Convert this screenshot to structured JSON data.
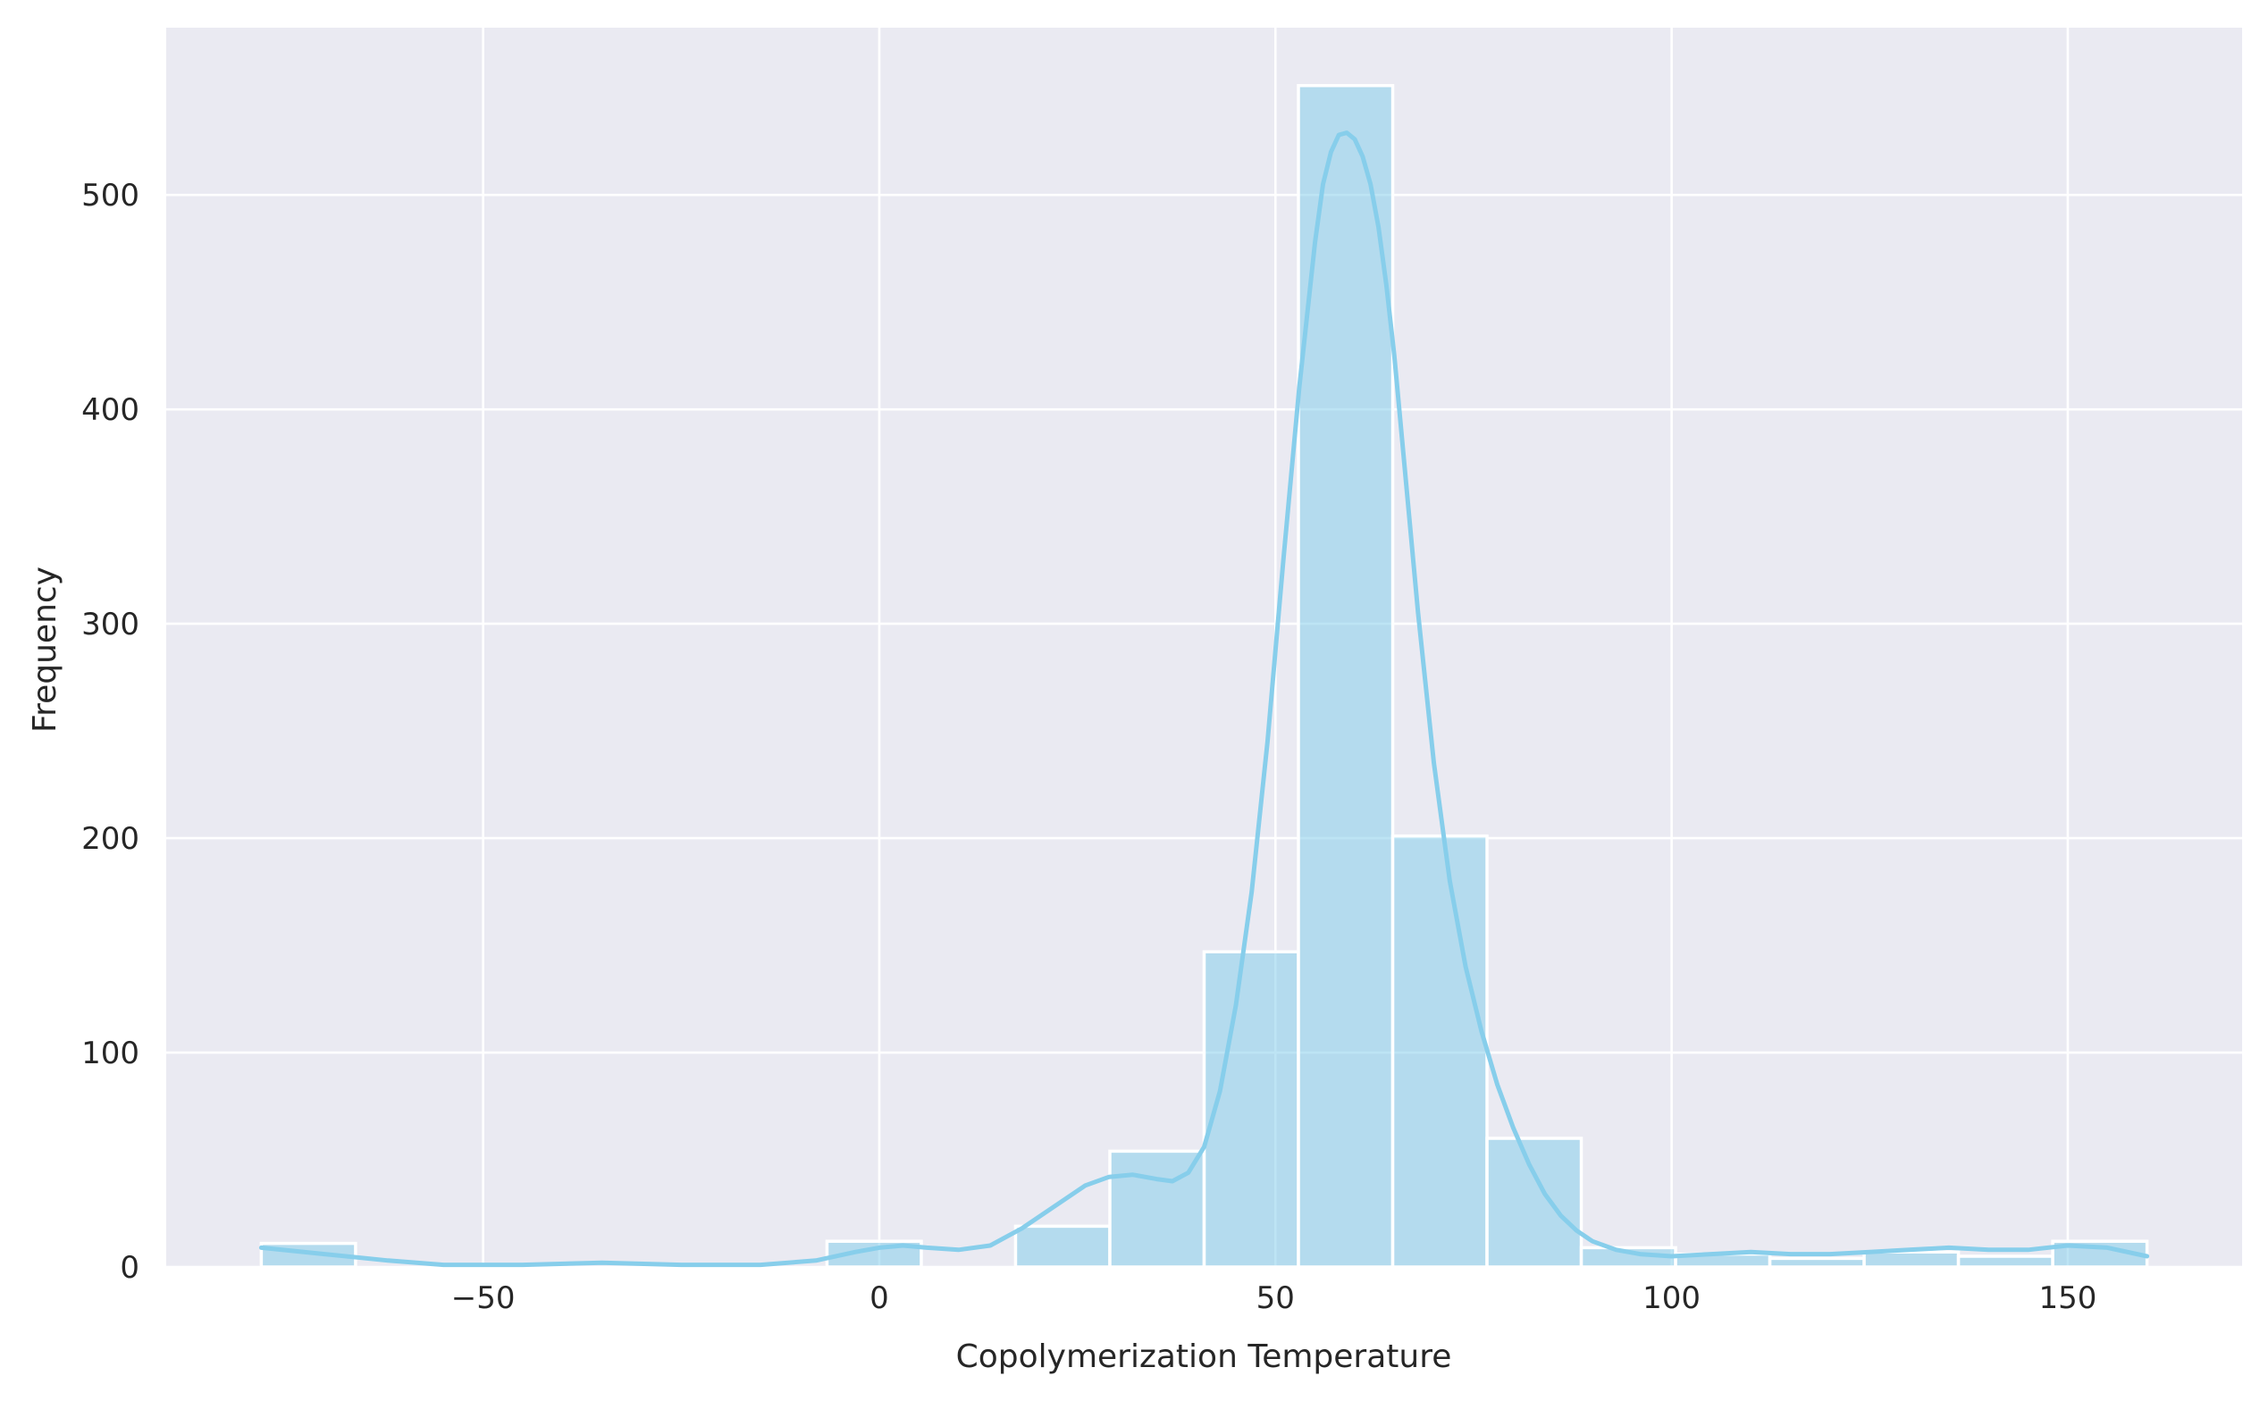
{
  "chart_data": {
    "type": "histogram",
    "xlabel": "Copolymerization Temperature",
    "ylabel": "Frequency",
    "xlim": [
      -90,
      172
    ],
    "ylim": [
      0,
      578
    ],
    "x_ticks": [
      -50,
      0,
      50,
      100,
      150
    ],
    "x_tick_labels": [
      "−50",
      "0",
      "50",
      "100",
      "150"
    ],
    "y_ticks": [
      0,
      100,
      200,
      300,
      400,
      500
    ],
    "y_tick_labels": [
      "0",
      "100",
      "200",
      "300",
      "400",
      "500"
    ],
    "grid": true,
    "bar_color": "#87ceeb",
    "line_color": "#87ceeb",
    "background_color": "#eaeaf2",
    "bins": [
      {
        "x0": -78.0,
        "x1": -66.1,
        "count": 11
      },
      {
        "x0": -66.1,
        "x1": -54.2,
        "count": 0
      },
      {
        "x0": -54.2,
        "x1": -42.3,
        "count": 0
      },
      {
        "x0": -42.3,
        "x1": -30.4,
        "count": 0
      },
      {
        "x0": -30.4,
        "x1": -18.5,
        "count": 0
      },
      {
        "x0": -18.5,
        "x1": -6.6,
        "count": 0
      },
      {
        "x0": -6.6,
        "x1": 5.3,
        "count": 12
      },
      {
        "x0": 5.3,
        "x1": 17.2,
        "count": 0
      },
      {
        "x0": 17.2,
        "x1": 29.1,
        "count": 19
      },
      {
        "x0": 29.1,
        "x1": 41.0,
        "count": 54
      },
      {
        "x0": 41.0,
        "x1": 52.9,
        "count": 147
      },
      {
        "x0": 52.9,
        "x1": 64.8,
        "count": 551
      },
      {
        "x0": 64.8,
        "x1": 76.7,
        "count": 201
      },
      {
        "x0": 76.7,
        "x1": 88.6,
        "count": 60
      },
      {
        "x0": 88.6,
        "x1": 100.5,
        "count": 9
      },
      {
        "x0": 100.5,
        "x1": 112.4,
        "count": 6
      },
      {
        "x0": 112.4,
        "x1": 124.3,
        "count": 4
      },
      {
        "x0": 124.3,
        "x1": 136.2,
        "count": 7
      },
      {
        "x0": 136.2,
        "x1": 148.1,
        "count": 5
      },
      {
        "x0": 148.1,
        "x1": 160.0,
        "count": 12
      }
    ],
    "kde": {
      "x": [
        -78,
        -70,
        -62,
        -55,
        -45,
        -35,
        -25,
        -15,
        -8,
        -3,
        0,
        3,
        6,
        10,
        14,
        18,
        22,
        26,
        29,
        32,
        35,
        37,
        39,
        41,
        43,
        45,
        47,
        49,
        51,
        53,
        55,
        56,
        57,
        58,
        59,
        60,
        61,
        62,
        63,
        64,
        65,
        66,
        68,
        70,
        72,
        74,
        76,
        78,
        80,
        82,
        84,
        86,
        88,
        90,
        93,
        96,
        100,
        105,
        110,
        115,
        120,
        125,
        130,
        135,
        140,
        145,
        150,
        155,
        160
      ],
      "y": [
        9,
        6,
        3,
        1,
        1,
        2,
        1,
        1,
        3,
        7,
        9,
        10,
        9,
        8,
        10,
        18,
        28,
        38,
        42,
        43,
        41,
        40,
        44,
        56,
        82,
        122,
        175,
        245,
        330,
        410,
        478,
        505,
        520,
        528,
        529,
        526,
        518,
        505,
        485,
        458,
        425,
        385,
        305,
        235,
        180,
        140,
        110,
        85,
        65,
        48,
        34,
        24,
        17,
        12,
        8,
        6,
        5,
        6,
        7,
        6,
        6,
        7,
        8,
        9,
        8,
        8,
        10,
        9,
        5
      ]
    }
  }
}
